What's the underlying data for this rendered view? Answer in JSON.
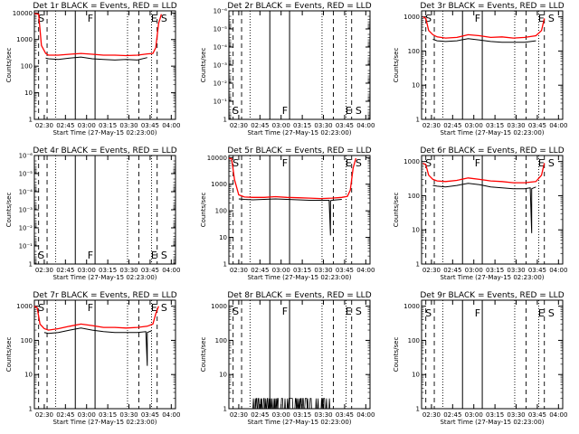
{
  "figure": {
    "common_xlabel": "Start Time (27-May-15 02:23:00)",
    "common_ylabel": "Counts/sec",
    "xtick_labels": [
      "02:30",
      "02:45",
      "03:00",
      "03:15",
      "03:30",
      "03:45",
      "04:00"
    ]
  },
  "colors": {
    "events": "#000000",
    "lld": "#ff0000",
    "axes": "#000000"
  },
  "chart_data": [
    {
      "type": "line",
      "title": "Det 1r BLACK = Events, RED = LLD",
      "xlabel": "Start Time (27-May-15 02:23:00)",
      "ylabel": "Counts/sec",
      "xlim": [
        "02:23",
        "04:03"
      ],
      "ylim": [
        1,
        12000
      ],
      "yscale": "log",
      "ytick_labels": [
        "1",
        "10",
        "100",
        "1000",
        "10000"
      ],
      "markers": [
        {
          "letter": "S",
          "time": "02:25"
        },
        {
          "letter": "F",
          "time": "03:00"
        },
        {
          "letter": "E",
          "time": "03:45"
        },
        {
          "letter": "S",
          "time": "03:52"
        }
      ],
      "series": [
        {
          "color": "#ff0000",
          "x": [
            "02:23",
            "02:26",
            "02:28",
            "02:31",
            "02:33",
            "02:40",
            "02:48",
            "02:56",
            "03:04",
            "03:12",
            "03:20",
            "03:28",
            "03:36",
            "03:43",
            "03:47",
            "03:49",
            "03:51",
            "03:53"
          ],
          "values": [
            9500,
            9000,
            600,
            300,
            260,
            260,
            280,
            300,
            280,
            260,
            260,
            250,
            260,
            290,
            300,
            500,
            4000,
            9000
          ]
        },
        {
          "color": "#000000",
          "x": [
            "02:31",
            "02:33",
            "02:40",
            "02:48",
            "02:56",
            "03:04",
            "03:12",
            "03:20",
            "03:28",
            "03:36",
            "03:43"
          ],
          "values": [
            200,
            190,
            180,
            200,
            220,
            190,
            180,
            170,
            180,
            170,
            210
          ]
        }
      ]
    },
    {
      "type": "line",
      "title": "Det 2r BLACK = Events, RED = LLD",
      "xlabel": "Start Time (27-May-15 02:23:00)",
      "ylabel": "Counts/sec",
      "xlim": [
        "02:23",
        "04:03"
      ],
      "ylim": [
        1,
        1e-06
      ],
      "yscale": "log",
      "ytick_labels": [
        "1",
        "10⁻¹",
        "10⁻²",
        "10⁻³",
        "10⁻⁴",
        "10⁻⁵",
        "10⁻⁶"
      ],
      "markers": [
        {
          "letter": "S",
          "time": "02:25"
        },
        {
          "letter": "F",
          "time": "03:00"
        },
        {
          "letter": "E",
          "time": "03:45"
        },
        {
          "letter": "S",
          "time": "03:52"
        }
      ],
      "series": []
    },
    {
      "type": "line",
      "title": "Det 3r BLACK = Events, RED = LLD",
      "xlabel": "Start Time (27-May-15 02:23:00)",
      "ylabel": "Counts/sec",
      "xlim": [
        "02:23",
        "04:03"
      ],
      "ylim": [
        1,
        1500
      ],
      "yscale": "log",
      "ytick_labels": [
        "1",
        "10",
        "100",
        "1000"
      ],
      "markers": [
        {
          "letter": "S",
          "time": "02:25"
        },
        {
          "letter": "F",
          "time": "03:00"
        },
        {
          "letter": "E",
          "time": "03:45"
        },
        {
          "letter": "S",
          "time": "03:52"
        }
      ],
      "series": [
        {
          "color": "#ff0000",
          "x": [
            "02:24",
            "02:26",
            "02:28",
            "02:31",
            "02:34",
            "02:40",
            "02:48",
            "02:56",
            "03:04",
            "03:12",
            "03:20",
            "03:28",
            "03:36",
            "03:44",
            "03:48",
            "03:50"
          ],
          "values": [
            1000,
            900,
            400,
            300,
            260,
            240,
            250,
            300,
            280,
            250,
            260,
            240,
            250,
            280,
            400,
            900
          ]
        },
        {
          "color": "#000000",
          "x": [
            "02:31",
            "02:34",
            "02:40",
            "02:48",
            "02:56",
            "03:04",
            "03:12",
            "03:20",
            "03:28",
            "03:36",
            "03:44"
          ],
          "values": [
            220,
            200,
            190,
            200,
            230,
            210,
            190,
            180,
            180,
            180,
            200
          ]
        }
      ]
    },
    {
      "type": "line",
      "title": "Det 4r BLACK = Events, RED = LLD",
      "xlabel": "Start Time (27-May-15 02:23:00)",
      "ylabel": "Counts/sec",
      "xlim": [
        "02:23",
        "04:03"
      ],
      "ylim": [
        1,
        1e-06
      ],
      "yscale": "log",
      "ytick_labels": [
        "1",
        "10⁻¹",
        "10⁻²",
        "10⁻³",
        "10⁻⁴",
        "10⁻⁵",
        "10⁻⁶"
      ],
      "markers": [
        {
          "letter": "S",
          "time": "02:25"
        },
        {
          "letter": "F",
          "time": "03:00"
        },
        {
          "letter": "E",
          "time": "03:45"
        },
        {
          "letter": "S",
          "time": "03:52"
        }
      ],
      "series": []
    },
    {
      "type": "line",
      "title": "Det 5r BLACK = Events, RED = LLD",
      "xlabel": "Start Time (27-May-15 02:23:00)",
      "ylabel": "Counts/sec",
      "xlim": [
        "02:23",
        "04:03"
      ],
      "ylim": [
        1,
        12000
      ],
      "yscale": "log",
      "ytick_labels": [
        "1",
        "10",
        "100",
        "1000",
        "10000"
      ],
      "markers": [
        {
          "letter": "S",
          "time": "02:25"
        },
        {
          "letter": "F",
          "time": "03:00"
        },
        {
          "letter": "E",
          "time": "03:45"
        },
        {
          "letter": "S",
          "time": "03:52"
        }
      ],
      "series": [
        {
          "color": "#ff0000",
          "x": [
            "02:23",
            "02:25",
            "02:27",
            "02:30",
            "02:34",
            "02:40",
            "02:48",
            "02:56",
            "03:04",
            "03:12",
            "03:20",
            "03:28",
            "03:36",
            "03:43",
            "03:47",
            "03:49",
            "03:51",
            "03:53"
          ],
          "values": [
            9500,
            9000,
            1500,
            400,
            330,
            320,
            320,
            340,
            320,
            310,
            300,
            290,
            300,
            320,
            350,
            600,
            4000,
            9500
          ]
        },
        {
          "color": "#000000",
          "x": [
            "02:30",
            "02:34",
            "02:40",
            "02:48",
            "02:56",
            "03:04",
            "03:12",
            "03:20",
            "03:28",
            "03:34",
            "03:35",
            "03:35",
            "03:36",
            "03:43"
          ],
          "values": [
            280,
            270,
            260,
            270,
            280,
            270,
            260,
            250,
            250,
            250,
            12,
            240,
            250,
            270
          ]
        }
      ]
    },
    {
      "type": "line",
      "title": "Det 6r BLACK = Events, RED = LLD",
      "xlabel": "Start Time (27-May-15 02:23:00)",
      "ylabel": "Counts/sec",
      "xlim": [
        "02:23",
        "04:03"
      ],
      "ylim": [
        1,
        1500
      ],
      "yscale": "log",
      "ytick_labels": [
        "1",
        "10",
        "100",
        "1000"
      ],
      "markers": [
        {
          "letter": "S",
          "time": "02:25"
        },
        {
          "letter": "F",
          "time": "03:00"
        },
        {
          "letter": "E",
          "time": "03:45"
        },
        {
          "letter": "S",
          "time": "03:52"
        }
      ],
      "series": [
        {
          "color": "#ff0000",
          "x": [
            "02:24",
            "02:26",
            "02:28",
            "02:31",
            "02:34",
            "02:40",
            "02:48",
            "02:56",
            "03:04",
            "03:12",
            "03:20",
            "03:28",
            "03:36",
            "03:44",
            "03:48",
            "03:50"
          ],
          "values": [
            900,
            800,
            400,
            300,
            270,
            260,
            280,
            330,
            300,
            270,
            260,
            240,
            240,
            260,
            400,
            900
          ]
        },
        {
          "color": "#000000",
          "x": [
            "02:31",
            "02:34",
            "02:40",
            "02:48",
            "02:56",
            "03:04",
            "03:12",
            "03:20",
            "03:28",
            "03:36",
            "03:40",
            "03:41",
            "03:41",
            "03:44"
          ],
          "values": [
            200,
            190,
            180,
            200,
            230,
            210,
            180,
            170,
            160,
            160,
            170,
            8,
            160,
            180
          ]
        }
      ]
    },
    {
      "type": "line",
      "title": "Det 7r BLACK = Events, RED = LLD",
      "xlabel": "Start Time (27-May-15 02:23:00)",
      "ylabel": "Counts/sec",
      "xlim": [
        "02:23",
        "04:03"
      ],
      "ylim": [
        1,
        1500
      ],
      "yscale": "log",
      "ytick_labels": [
        "1",
        "10",
        "100",
        "1000"
      ],
      "markers": [
        {
          "letter": "S",
          "time": "02:25"
        },
        {
          "letter": "F",
          "time": "03:00"
        },
        {
          "letter": "E",
          "time": "03:45"
        },
        {
          "letter": "S",
          "time": "03:52"
        }
      ],
      "series": [
        {
          "color": "#ff0000",
          "x": [
            "02:23",
            "02:25",
            "02:27",
            "02:30",
            "02:33",
            "02:40",
            "02:48",
            "02:56",
            "03:04",
            "03:12",
            "03:20",
            "03:28",
            "03:36",
            "03:43",
            "03:47",
            "03:49",
            "03:51"
          ],
          "values": [
            1000,
            900,
            300,
            220,
            200,
            220,
            260,
            300,
            270,
            240,
            240,
            230,
            240,
            260,
            300,
            600,
            1000
          ]
        },
        {
          "color": "#000000",
          "x": [
            "02:30",
            "02:33",
            "02:40",
            "02:48",
            "02:56",
            "03:04",
            "03:12",
            "03:20",
            "03:28",
            "03:36",
            "03:42",
            "03:43",
            "03:43",
            "03:46"
          ],
          "values": [
            170,
            160,
            170,
            200,
            230,
            200,
            180,
            170,
            170,
            170,
            180,
            18,
            170,
            190
          ]
        }
      ]
    },
    {
      "type": "line",
      "title": "Det 8r BLACK = Events, RED = LLD",
      "xlabel": "Start Time (27-May-15 02:23:00)",
      "ylabel": "Counts/sec",
      "xlim": [
        "02:23",
        "04:03"
      ],
      "ylim": [
        1,
        1500
      ],
      "yscale": "log",
      "ytick_labels": [
        "1",
        "10",
        "100",
        "1000"
      ],
      "markers": [
        {
          "letter": "S",
          "time": "02:25"
        },
        {
          "letter": "F",
          "time": "03:00"
        },
        {
          "letter": "E",
          "time": "03:45"
        },
        {
          "letter": "S",
          "time": "03:52"
        }
      ],
      "series": [
        {
          "color": "#000000",
          "noise": true,
          "x_range": [
            "02:40",
            "03:35"
          ],
          "values": [
            1,
            2
          ]
        }
      ]
    },
    {
      "type": "line",
      "title": "Det 9r BLACK = Events, RED = LLD",
      "xlabel": "Start Time (27-May-15 02:23:00)",
      "ylabel": "Counts/sec",
      "xlim": [
        "02:23",
        "04:03"
      ],
      "ylim": [
        1,
        1500
      ],
      "yscale": "log",
      "ytick_labels": [
        "1",
        "10",
        "100",
        "1000"
      ],
      "markers": [
        {
          "letter": "S",
          "time": "02:25"
        },
        {
          "letter": "F",
          "time": "03:00"
        },
        {
          "letter": "E",
          "time": "03:45"
        },
        {
          "letter": "S",
          "time": "03:52"
        }
      ],
      "series": []
    }
  ]
}
